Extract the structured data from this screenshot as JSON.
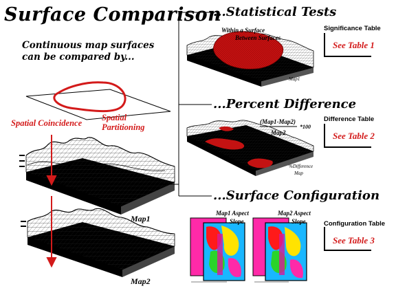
{
  "title": "Surface Comparison",
  "subtitle": "Continuous map surfaces can be compared by...",
  "left": {
    "spatial_coincidence": "Spatial Coincidence",
    "spatial_partitioning": "Spatial Partitioning",
    "map1_label": "Map1",
    "map2_label": "Map2"
  },
  "sections": [
    {
      "heading": "...Statistical Tests",
      "note_line1": "Within a Surface",
      "note_line2": "Between Surfaces",
      "map_label": "Map1",
      "table_header": "Significance Table",
      "table_ref": "See Table 1"
    },
    {
      "heading": "...Percent Difference",
      "formula_numerator": "(Map1-Map2)",
      "formula_denominator": "Map2",
      "formula_factor": "*100",
      "map_label_line1": "%Difference",
      "map_label_line2": "Map",
      "table_header": "Difference Table",
      "table_ref": "See Table 2"
    },
    {
      "heading": "...Surface Configuration",
      "map1_caption_line1": "Map1 Aspect",
      "map1_caption_line2": "Slope",
      "map2_caption_line1": "Map2 Aspect",
      "map2_caption_line2": "Slope",
      "table_header": "Configuration Table",
      "table_ref": "See Table 3"
    }
  ],
  "colors": {
    "accent": "#d31a1a",
    "surface_fill": "#ffffff",
    "grid": "#222222"
  }
}
